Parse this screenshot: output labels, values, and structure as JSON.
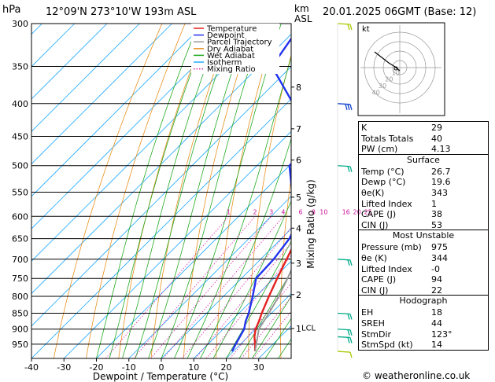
{
  "header": {
    "pressure_unit": "hPa",
    "location": "12°09'N  273°10'W  193m  ASL",
    "height_unit_top": "km",
    "height_unit_bottom": "ASL",
    "datetime": "20.01.2025  06GMT  (Base: 12)"
  },
  "chart_data": {
    "type": "line",
    "xlabel": "Dewpoint / Temperature (°C)",
    "ylabel": "Mixing Ratio (g/kg)",
    "pressure_levels": [
      300,
      350,
      400,
      450,
      500,
      550,
      600,
      650,
      700,
      750,
      800,
      850,
      900,
      950
    ],
    "temperature_ticks": [
      -40,
      -30,
      -20,
      -10,
      0,
      10,
      20,
      30
    ],
    "x_range": [
      -40,
      40
    ],
    "p_range": [
      300,
      1000
    ],
    "skew": 1,
    "height_ticks": [
      {
        "km": "1",
        "p": 898
      },
      {
        "km": "2",
        "p": 795
      },
      {
        "km": "3",
        "p": 710
      },
      {
        "km": "4",
        "p": 626
      },
      {
        "km": "5",
        "p": 560
      },
      {
        "km": "6",
        "p": 490
      },
      {
        "km": "7",
        "p": 438
      },
      {
        "km": "8",
        "p": 377
      }
    ],
    "lcl_label": "LCL",
    "lcl_p": 895,
    "mixing_ratio_labels": [
      "1",
      "2",
      "3",
      "4",
      "6",
      "8",
      "10",
      "16",
      "20",
      "25"
    ],
    "mixing_ratio_values": [
      1,
      2,
      3,
      4,
      6,
      8,
      10,
      16,
      20,
      25
    ],
    "legend": [
      "Temperature",
      "Dewpoint",
      "Parcel Trajectory",
      "Dry Adiabat",
      "Wet Adiabat",
      "Isotherm",
      "Mixing Ratio"
    ],
    "series": [
      {
        "name": "Temperature",
        "color": "#e32222",
        "points": [
          [
            975,
            26.7
          ],
          [
            950,
            24.5
          ],
          [
            925,
            22.0
          ],
          [
            900,
            20.0
          ],
          [
            875,
            18.6
          ],
          [
            850,
            17.0
          ],
          [
            800,
            14.0
          ],
          [
            750,
            11.0
          ],
          [
            700,
            8.0
          ],
          [
            650,
            4.8
          ],
          [
            600,
            1.0
          ],
          [
            550,
            -3.0
          ],
          [
            500,
            -7.5
          ],
          [
            450,
            -13.0
          ],
          [
            400,
            -19.5
          ],
          [
            350,
            -28.0
          ],
          [
            300,
            -36.0
          ]
        ]
      },
      {
        "name": "Dewpoint",
        "color": "#2233ee",
        "points": [
          [
            975,
            19.6
          ],
          [
            950,
            18.5
          ],
          [
            925,
            17.5
          ],
          [
            900,
            16.5
          ],
          [
            875,
            14.5
          ],
          [
            850,
            13.0
          ],
          [
            800,
            9.0
          ],
          [
            750,
            4.5
          ],
          [
            700,
            4.0
          ],
          [
            650,
            2.5
          ],
          [
            600,
            -1.0
          ],
          [
            550,
            -11.0
          ],
          [
            500,
            -20.0
          ],
          [
            450,
            -20.0
          ],
          [
            400,
            -38.0
          ],
          [
            350,
            -56.0
          ],
          [
            300,
            -60.0
          ]
        ]
      },
      {
        "name": "Parcel Trajectory",
        "color": "#999999",
        "points": [
          [
            975,
            26.7
          ],
          [
            900,
            21.0
          ],
          [
            850,
            19.2
          ],
          [
            800,
            17.0
          ],
          [
            750,
            14.2
          ],
          [
            700,
            11.0
          ],
          [
            650,
            7.6
          ],
          [
            600,
            3.8
          ],
          [
            550,
            -0.4
          ],
          [
            500,
            -5.4
          ],
          [
            450,
            -11.4
          ],
          [
            400,
            -18.6
          ],
          [
            350,
            -27.0
          ],
          [
            300,
            -36.5
          ]
        ]
      }
    ]
  },
  "wind_colors": {
    "low": "#a8c800",
    "mid": "#00aa88",
    "high": "#1144cc"
  },
  "hodograph": {
    "label": "kt",
    "rings": [
      "10",
      "20",
      "30",
      "40"
    ]
  },
  "panel": {
    "indices": [
      {
        "k": "K",
        "v": "29"
      },
      {
        "k": "Totals Totals",
        "v": "40"
      },
      {
        "k": "PW (cm)",
        "v": "4.13"
      }
    ],
    "surface": {
      "title": "Surface",
      "rows": [
        {
          "k": "Temp (°C)",
          "v": "26.7"
        },
        {
          "k": "Dewp (°C)",
          "v": "19.6"
        },
        {
          "k": "θe(K)",
          "v": "343"
        },
        {
          "k": "Lifted Index",
          "v": "1"
        },
        {
          "k": "CAPE (J)",
          "v": "38"
        },
        {
          "k": "CIN (J)",
          "v": "53"
        }
      ]
    },
    "most_unstable": {
      "title": "Most Unstable",
      "rows": [
        {
          "k": "Pressure (mb)",
          "v": "975"
        },
        {
          "k": "θe (K)",
          "v": "344"
        },
        {
          "k": "Lifted Index",
          "v": "-0"
        },
        {
          "k": "CAPE (J)",
          "v": "94"
        },
        {
          "k": "CIN (J)",
          "v": "22"
        }
      ]
    },
    "hodograph": {
      "title": "Hodograph",
      "rows": [
        {
          "k": "EH",
          "v": "18"
        },
        {
          "k": "SREH",
          "v": "44"
        },
        {
          "k": "StmDir",
          "v": "123°"
        },
        {
          "k": "StmSpd (kt)",
          "v": "14"
        }
      ]
    }
  },
  "footer": {
    "credit": "© weatheronline.co.uk"
  }
}
